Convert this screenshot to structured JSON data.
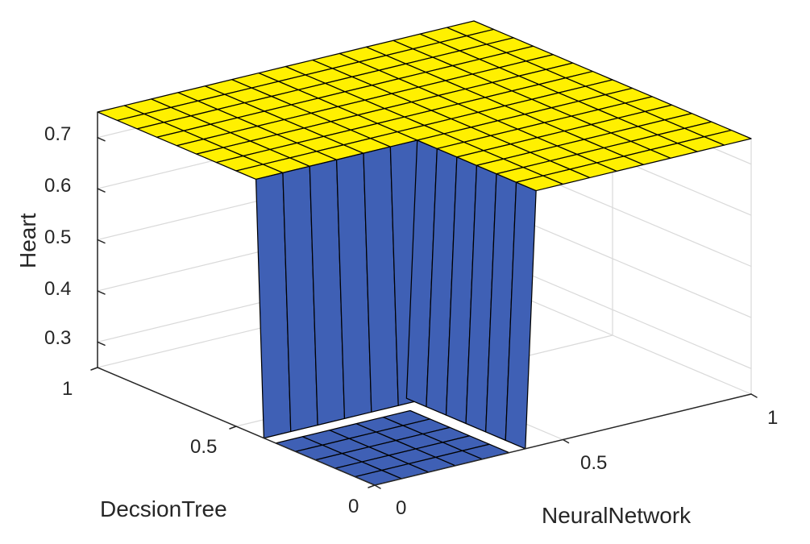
{
  "chart_data": {
    "type": "surface",
    "title": "",
    "xlabel": "DecsionTree",
    "ylabel": "NeuralNetwork",
    "zlabel": "Heart",
    "xlim": [
      0,
      1
    ],
    "ylim": [
      0,
      1
    ],
    "zlim": [
      0.25,
      0.75
    ],
    "x_ticks": [
      "0",
      "0.5",
      "1"
    ],
    "y_ticks": [
      "0",
      "0.5",
      "1"
    ],
    "z_ticks": [
      "0.3",
      "0.4",
      "0.5",
      "0.6",
      "0.7"
    ],
    "grid": true,
    "mesh": {
      "rows": 15,
      "cols": 15
    },
    "surface_levels": {
      "low": 0.25,
      "high": 0.75
    },
    "low_region": {
      "x_max": 0.4,
      "y_max": 0.4
    },
    "colors": {
      "low": "#3f60b5",
      "high": "#fff000",
      "mesh_line": "#000000",
      "grid": "#d9d9d9",
      "axis": "#262626",
      "background": "#ffffff"
    }
  }
}
